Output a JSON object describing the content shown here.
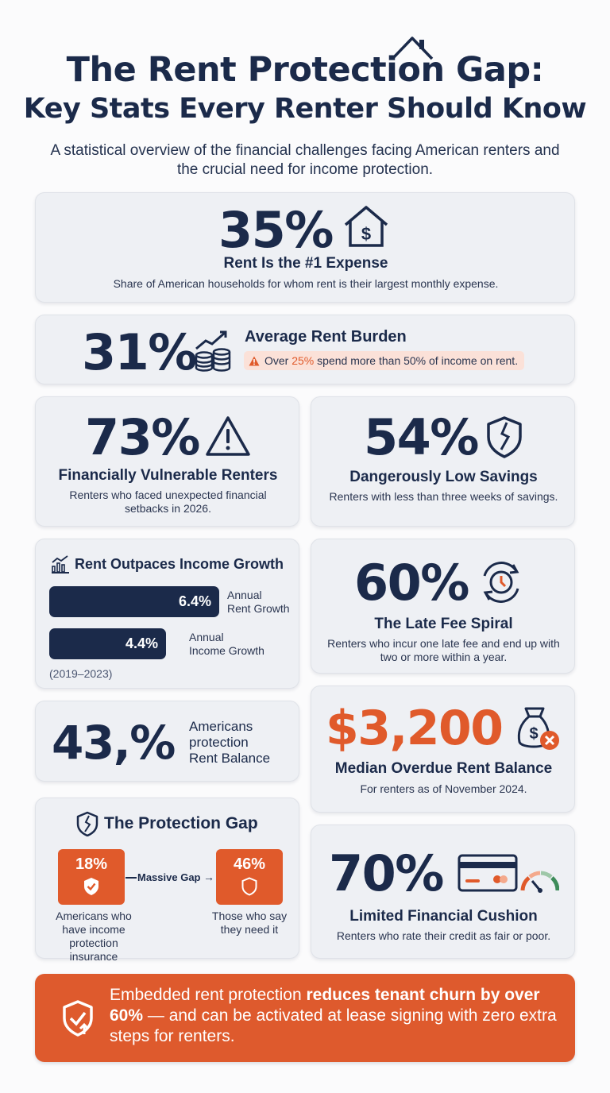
{
  "header": {
    "title_line1": "The Rent Protection Gap:",
    "title_line2": "Key Stats Every Renter Should Know",
    "subtitle": "A statistical overview of the financial challenges facing American renters and the crucial need for income protection."
  },
  "stats": {
    "rent_expense": {
      "value": "35%",
      "heading": "Rent Is the #1 Expense",
      "text": "Share of American households for whom rent is their largest monthly expense.",
      "icon": "house-dollar-icon"
    },
    "rent_burden": {
      "value": "31%",
      "heading": "Average Rent Burden",
      "warning_prefix": "Over ",
      "warning_highlight": "25%",
      "warning_suffix": " spend more than 50% of income on rent.",
      "icon": "coin-stack-growth-icon"
    },
    "vulnerable": {
      "value": "73%",
      "heading": "Financially Vulnerable Renters",
      "text": "Renters who faced unexpected financial setbacks in 2026.",
      "icon": "warning-triangle-icon"
    },
    "low_savings": {
      "value": "54%",
      "heading": "Dangerously Low Savings",
      "text": "Renters with less than three weeks of savings.",
      "icon": "broken-shield-icon"
    },
    "late_fee": {
      "value": "60%",
      "heading": "The Late Fee Spiral",
      "text": "Renters who incur one late fee and end up with two or more within a year.",
      "icon": "clock-cycle-icon"
    },
    "balance_43": {
      "value": "43,%",
      "line1": "Americans",
      "line2": "protection",
      "line3": "Rent Balance"
    },
    "overdue": {
      "value": "$3,200",
      "heading": "Median Overdue Rent Balance",
      "text": "For renters as of November 2024.",
      "icon": "money-bag-x-icon"
    },
    "cushion": {
      "value": "70%",
      "heading": "Limited Financial Cushion",
      "text": "Renters who rate their credit as fair or poor.",
      "icon": "credit-card-gauge-icon"
    }
  },
  "income_growth": {
    "heading": "Rent Outpaces Income Growth",
    "note": "(2019–2023)",
    "bars": [
      {
        "value": 6.4,
        "label": "6.4%",
        "caption1": "Annual",
        "caption2": "Rent Growth"
      },
      {
        "value": 4.4,
        "label": "4.4%",
        "caption1": "Annual",
        "caption2": "Income Growth"
      }
    ]
  },
  "protection_gap": {
    "heading": "The Protection Gap",
    "left_value": "18%",
    "left_text": "Americans who have income protection insurance",
    "gap_label": "Massive Gap",
    "right_value": "46%",
    "right_text": "Those who say they need it"
  },
  "banner": {
    "text_a": "Embedded rent protection ",
    "text_bold": "reduces tenant churn by over 60%",
    "text_b": " — and can be activated at lease signing with zero extra steps for renters."
  },
  "colors": {
    "navy": "#1b2a4a",
    "orange": "#e05a2b",
    "card": "#eef0f4",
    "warning_pill": "#fbe1d8"
  }
}
